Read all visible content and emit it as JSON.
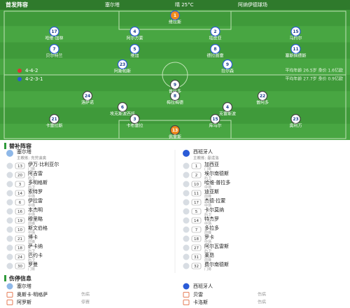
{
  "header": {
    "title": "首发阵容",
    "home": "塞尔塔",
    "weather": "晴 25°C",
    "venue": "阿纳伊德球场"
  },
  "home": {
    "formation": "4-4-2",
    "info": "平均年龄 26.5岁  身价 1.6亿欧",
    "players": [
      {
        "number": "1",
        "name": "维拉斯"
      },
      {
        "number": "17",
        "name": "哈维·加林"
      },
      {
        "number": "4",
        "name": "阿尔方索"
      },
      {
        "number": "2",
        "name": "塔皮亚"
      },
      {
        "number": "15",
        "name": "马约尔"
      },
      {
        "number": "7",
        "name": "贝尔特兰"
      },
      {
        "number": "5",
        "name": "维加"
      },
      {
        "number": "8",
        "name": "德拉图雷"
      },
      {
        "number": "11",
        "name": "塞斯佩德斯"
      },
      {
        "number": "23",
        "name": "阿斯帕斯"
      },
      {
        "number": "9",
        "name": "拉尔森"
      }
    ]
  },
  "away": {
    "formation": "4-2-3-1",
    "info": "平均年龄 27.7岁  身价 0.9亿欧",
    "players": [
      {
        "number": "13",
        "name": "佩雷斯"
      },
      {
        "number": "21",
        "name": "卡雷拉斯"
      },
      {
        "number": "3",
        "name": "卡布雷拉"
      },
      {
        "number": "15",
        "name": "库马尔"
      },
      {
        "number": "23",
        "name": "奥利万"
      },
      {
        "number": "6",
        "name": "埃克斯波西托"
      },
      {
        "number": "4",
        "name": "克雷斯波"
      },
      {
        "number": "24",
        "name": "洛萨诺"
      },
      {
        "number": "8",
        "name": "梅拉梅德"
      },
      {
        "number": "22",
        "name": "普阿多"
      },
      {
        "number": "9",
        "name": "普拉多"
      }
    ]
  },
  "subs": {
    "title": "替补阵容",
    "home": {
      "team": "塞尔塔",
      "coach": "主教练: 克劳迪奥",
      "players": [
        {
          "number": "13",
          "name": "伊万·比利亚尔",
          "pos": "门将"
        },
        {
          "number": "20",
          "name": "阿吉雷",
          "pos": "后卫"
        },
        {
          "number": "3",
          "name": "多明格斯",
          "pos": "后卫"
        },
        {
          "number": "14",
          "name": "索特罗",
          "pos": "中场"
        },
        {
          "number": "6",
          "name": "伊拉雷",
          "pos": "中场"
        },
        {
          "number": "16",
          "name": "本杰明",
          "pos": "中场"
        },
        {
          "number": "19",
          "name": "穆里略",
          "pos": "前锋"
        },
        {
          "number": "10",
          "name": "斯文伯格",
          "pos": "中场"
        },
        {
          "number": "21",
          "name": "博卡",
          "pos": "前锋"
        },
        {
          "number": "18",
          "name": "萨卡纳",
          "pos": "后卫"
        },
        {
          "number": "24",
          "name": "巴约卡",
          "pos": "后卫"
        },
        {
          "number": "30",
          "name": "罗曼",
          "pos": "门将"
        }
      ]
    },
    "away": {
      "team": "西班牙人",
      "coach": "主教练: 曼诺洛",
      "players": [
        {
          "number": "1",
          "name": "加西亚",
          "pos": "门将"
        },
        {
          "number": "2",
          "name": "埃尔南德斯",
          "pos": "后卫"
        },
        {
          "number": "10",
          "name": "哈维·普拉多",
          "pos": "中场"
        },
        {
          "number": "11",
          "name": "迪亚斯",
          "pos": "前锋"
        },
        {
          "number": "17",
          "name": "杰德·拉蒙",
          "pos": "中场"
        },
        {
          "number": "5",
          "name": "卡尔莫纳",
          "pos": "后卫"
        },
        {
          "number": "14",
          "name": "特杰罗",
          "pos": "中场"
        },
        {
          "number": "7",
          "name": "多拉多",
          "pos": "前锋"
        },
        {
          "number": "18",
          "name": "罗卡",
          "pos": "中场"
        },
        {
          "number": "27",
          "name": "阿尔瓦雷斯",
          "pos": "后卫"
        },
        {
          "number": "31",
          "name": "莱昂",
          "pos": "前锋"
        },
        {
          "number": "32",
          "name": "费尔南德斯",
          "pos": "门将"
        }
      ]
    }
  },
  "injuries": {
    "title": "伤停信息",
    "home": {
      "team": "塞尔塔",
      "players": [
        {
          "name": "奥斯卡·明格萨",
          "pos": "伤病"
        },
        {
          "name": "阿罗斯",
          "pos": "停赛"
        }
      ]
    },
    "away": {
      "team": "西班牙人",
      "players": [
        {
          "name": "贝雷",
          "pos": "伤病"
        },
        {
          "name": "卡洛斯",
          "pos": "伤病"
        }
      ]
    }
  }
}
